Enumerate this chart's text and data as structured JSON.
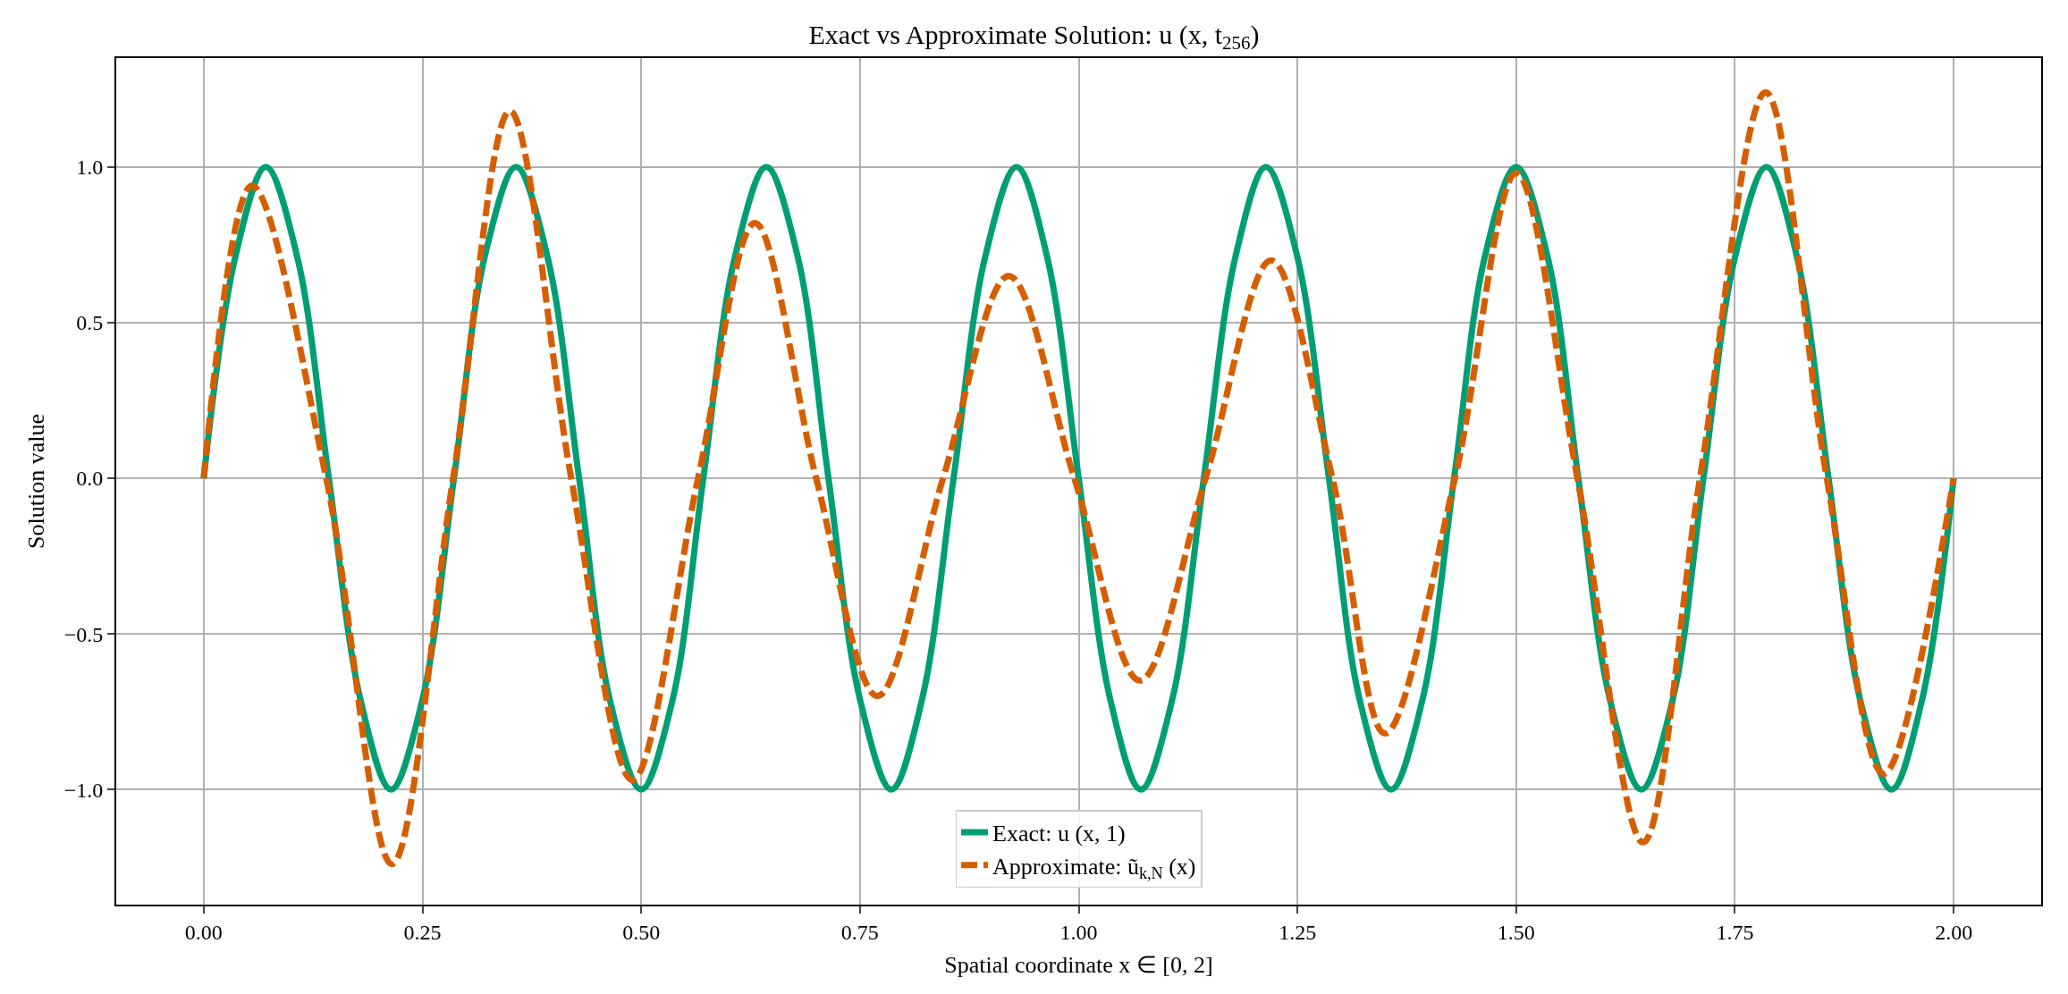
{
  "chart_data": {
    "type": "line",
    "title": "Exact vs Approximate Solution: u (x, t$_{256}$)",
    "xlabel": "Spatial coordinate x ∈ [0, 2]",
    "ylabel": "Solution value",
    "series": [
      {
        "name": "Exact: u (x, 1)",
        "color": "#009e73",
        "line_style": "solid",
        "x": [
          0,
          0.036,
          0.071,
          0.107,
          0.143,
          0.179,
          0.214,
          0.25,
          0.286,
          0.321,
          0.357,
          0.393,
          0.429,
          0.464,
          0.5,
          0.536,
          0.571,
          0.607,
          0.643,
          0.679,
          0.714,
          0.75,
          0.786,
          0.821,
          0.857,
          0.893,
          0.929,
          0.964,
          1.0,
          1.036,
          1.071,
          1.107,
          1.143,
          1.179,
          1.214,
          1.25,
          1.286,
          1.321,
          1.357,
          1.393,
          1.429,
          1.464,
          1.5,
          1.536,
          1.571,
          1.607,
          1.643,
          1.679,
          1.714,
          1.75,
          1.786,
          1.821,
          1.857,
          1.893,
          1.929,
          1.964,
          2.0
        ],
        "values": [
          0,
          0.71,
          1,
          0.71,
          0,
          -0.71,
          -1,
          -0.71,
          0,
          0.71,
          1,
          0.71,
          0,
          -0.71,
          -1,
          -0.71,
          0,
          0.71,
          1,
          0.71,
          0,
          -0.71,
          -1,
          -0.71,
          0,
          0.71,
          1,
          0.71,
          0,
          -0.71,
          -1,
          -0.71,
          0,
          0.71,
          1,
          0.71,
          0,
          -0.71,
          -1,
          -0.71,
          0,
          0.71,
          1,
          0.71,
          0,
          -0.71,
          -1,
          -0.71,
          0,
          0.71,
          1,
          0.71,
          0,
          -0.71,
          -1,
          -0.71,
          0
        ]
      },
      {
        "name": "Approximate: ũ$_{k,N}$ (x)",
        "color": "#d55e00",
        "line_style": "dashed",
        "x": [
          0,
          0.055,
          0.14,
          0.215,
          0.285,
          0.35,
          0.42,
          0.49,
          0.565,
          0.63,
          0.7,
          0.77,
          0.845,
          0.92,
          0.995,
          1.07,
          1.145,
          1.22,
          1.29,
          1.35,
          1.43,
          1.5,
          1.57,
          1.645,
          1.71,
          1.785,
          1.855,
          1.92,
          2.0
        ],
        "values": [
          0,
          0.94,
          0,
          -1.24,
          0,
          1.18,
          0,
          -0.97,
          0,
          0.82,
          0,
          -0.7,
          0,
          0.65,
          0,
          -0.65,
          0,
          0.7,
          0,
          -0.82,
          0,
          0.98,
          0,
          -1.17,
          0,
          1.24,
          0,
          -0.95,
          0
        ]
      }
    ],
    "xlim": [
      -0.1,
      2.1
    ],
    "xticks": [
      {
        "value": 0,
        "label": "0.00"
      },
      {
        "value": 0.25,
        "label": "0.25"
      },
      {
        "value": 0.5,
        "label": "0.50"
      },
      {
        "value": 0.75,
        "label": "0.75"
      },
      {
        "value": 1,
        "label": "1.00"
      },
      {
        "value": 1.25,
        "label": "1.25"
      },
      {
        "value": 1.5,
        "label": "1.50"
      },
      {
        "value": 1.75,
        "label": "1.75"
      },
      {
        "value": 2,
        "label": "2.00"
      }
    ],
    "ylim": [
      -1.37,
      1.35
    ],
    "yticks": [
      {
        "value": -1,
        "label": "−1.0"
      },
      {
        "value": -0.5,
        "label": "−0.5"
      },
      {
        "value": 0,
        "label": "0.0"
      },
      {
        "value": 0.5,
        "label": "0.5"
      },
      {
        "value": 1,
        "label": "1.0"
      }
    ],
    "grid": true,
    "legend": "bottom"
  }
}
